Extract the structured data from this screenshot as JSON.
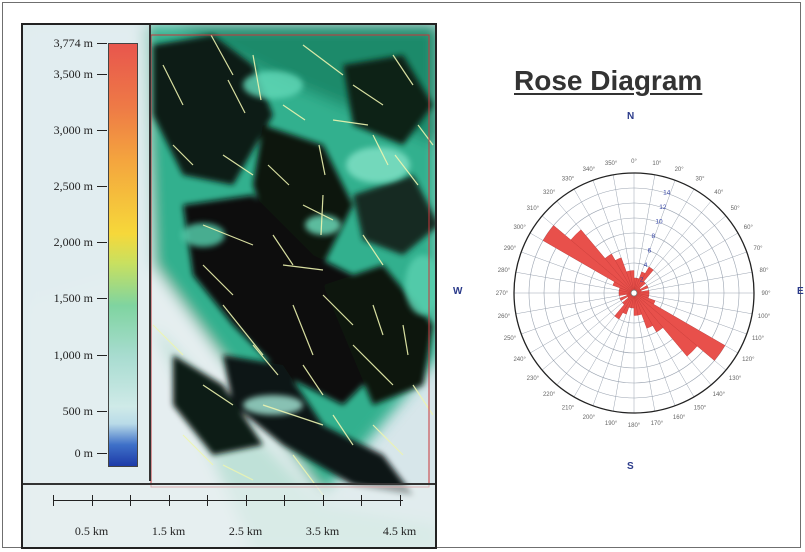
{
  "legend": {
    "title": "",
    "labels": [
      "3,774 m",
      "3,500 m",
      "3,000 m",
      "2,500 m",
      "2,000 m",
      "1,500 m",
      "1,000 m",
      "500 m",
      "0 m"
    ],
    "values": [
      3774,
      3500,
      3000,
      2500,
      2000,
      1500,
      1000,
      500,
      0
    ]
  },
  "scale_bar": {
    "labels": [
      "0.5 km",
      "1.5 km",
      "2.5 km",
      "3.5 km",
      "4.5 km"
    ],
    "tick_count": 10
  },
  "rose": {
    "title": "Rose Diagram",
    "compass": {
      "N": "N",
      "S": "S",
      "W": "W",
      "E": "E"
    },
    "angle_labels": [
      "0°",
      "10°",
      "20°",
      "30°",
      "40°",
      "50°",
      "60°",
      "70°",
      "80°",
      "90°",
      "100°",
      "110°",
      "120°",
      "130°",
      "140°",
      "150°",
      "160°",
      "170°",
      "180°",
      "190°",
      "200°",
      "210°",
      "220°",
      "230°",
      "240°",
      "250°",
      "260°",
      "270°",
      "280°",
      "290°",
      "300°",
      "310°",
      "320°",
      "330°",
      "340°",
      "350°"
    ],
    "radial_labels": [
      "2",
      "4",
      "6",
      "8",
      "10",
      "12",
      "14"
    ],
    "radial_max": 16
  },
  "chart_data": {
    "type": "rose",
    "title": "Rose Diagram",
    "bin_width_deg": 10,
    "bins": [
      {
        "azimuth": 0,
        "count": 2
      },
      {
        "azimuth": 10,
        "count": 2
      },
      {
        "azimuth": 20,
        "count": 3
      },
      {
        "azimuth": 30,
        "count": 4
      },
      {
        "azimuth": 40,
        "count": 2
      },
      {
        "azimuth": 50,
        "count": 1
      },
      {
        "azimuth": 60,
        "count": 2
      },
      {
        "azimuth": 70,
        "count": 1
      },
      {
        "azimuth": 80,
        "count": 2
      },
      {
        "azimuth": 90,
        "count": 2
      },
      {
        "azimuth": 100,
        "count": 2
      },
      {
        "azimuth": 110,
        "count": 3
      },
      {
        "azimuth": 120,
        "count": 14
      },
      {
        "azimuth": 130,
        "count": 11
      },
      {
        "azimuth": 140,
        "count": 6
      },
      {
        "azimuth": 150,
        "count": 5
      },
      {
        "azimuth": 160,
        "count": 3
      },
      {
        "azimuth": 170,
        "count": 3
      },
      {
        "azimuth": 180,
        "count": 2
      },
      {
        "azimuth": 190,
        "count": 2
      },
      {
        "azimuth": 200,
        "count": 3
      },
      {
        "azimuth": 210,
        "count": 4
      },
      {
        "azimuth": 220,
        "count": 2
      },
      {
        "azimuth": 230,
        "count": 1
      },
      {
        "azimuth": 240,
        "count": 2
      },
      {
        "azimuth": 250,
        "count": 1
      },
      {
        "azimuth": 260,
        "count": 2
      },
      {
        "azimuth": 270,
        "count": 2
      },
      {
        "azimuth": 280,
        "count": 2
      },
      {
        "azimuth": 290,
        "count": 3
      },
      {
        "azimuth": 300,
        "count": 14
      },
      {
        "azimuth": 310,
        "count": 11
      },
      {
        "azimuth": 320,
        "count": 6
      },
      {
        "azimuth": 330,
        "count": 5
      },
      {
        "azimuth": 340,
        "count": 3
      },
      {
        "azimuth": 350,
        "count": 3
      }
    ],
    "colors": {
      "petal": "#e8504b",
      "grid": "#9aa3b0",
      "axis": "#3848a8"
    }
  }
}
